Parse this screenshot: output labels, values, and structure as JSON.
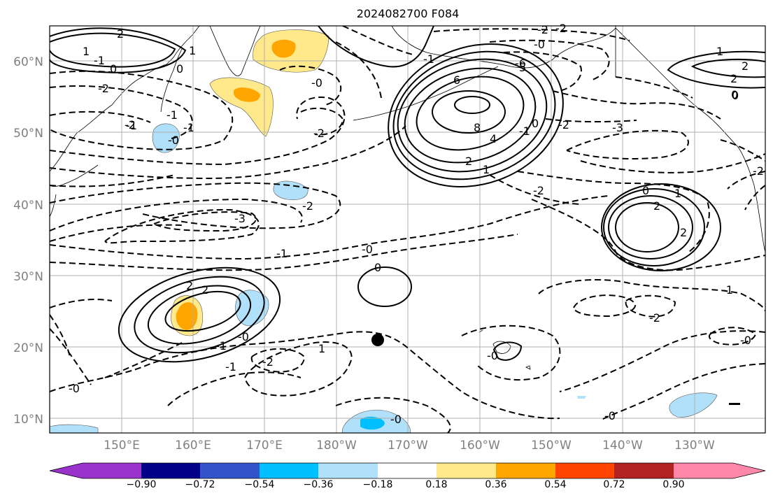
{
  "title": "2024082700 F084",
  "map": {
    "lat_labels": [
      "60°N",
      "50°N",
      "40°N",
      "30°N",
      "20°N",
      "10°N"
    ],
    "lon_labels": [
      "150°E",
      "160°E",
      "170°E",
      "180°W",
      "170°W",
      "160°W",
      "150°W",
      "140°W",
      "130°W"
    ],
    "colorbar": {
      "tick_labels": [
        "−0.90",
        "−0.72",
        "−0.54",
        "−0.36",
        "−0.18",
        "0.18",
        "0.36",
        "0.54",
        "0.72",
        "0.90"
      ],
      "colors": [
        "#9933cc",
        "#000088",
        "#3355cc",
        "#00bfff",
        "#b0e0fa",
        "#ffffff",
        "#ffe98a",
        "#ffa500",
        "#ff4500",
        "#b22222",
        "#ff88aa"
      ]
    },
    "contour_labels": [
      "2",
      "1",
      "0",
      "-1",
      "0",
      "-2",
      "-0",
      "-1",
      "1",
      "-1",
      "-0",
      "-2",
      "-2",
      "-3",
      "-1",
      "-0",
      "0",
      "2",
      "2",
      "-1",
      "-0",
      "1",
      "-2",
      "-1",
      "-0",
      "-0",
      "-2",
      "-0",
      "-0",
      "-0",
      "-2",
      "-1",
      "-6",
      "6",
      "5",
      "8",
      "4",
      "2",
      "1",
      "0",
      "-2",
      "-1",
      "-3",
      "-2",
      "0",
      "1",
      "2",
      "2",
      "-0",
      "2",
      "1",
      "2",
      "0",
      "-1",
      "-2",
      "-2",
      "-2",
      "-1",
      "0"
    ],
    "marker": "filled-circle",
    "colors": {
      "land_outline": "#000000",
      "grid": "#b0b0b0",
      "contour": "#000000"
    }
  }
}
